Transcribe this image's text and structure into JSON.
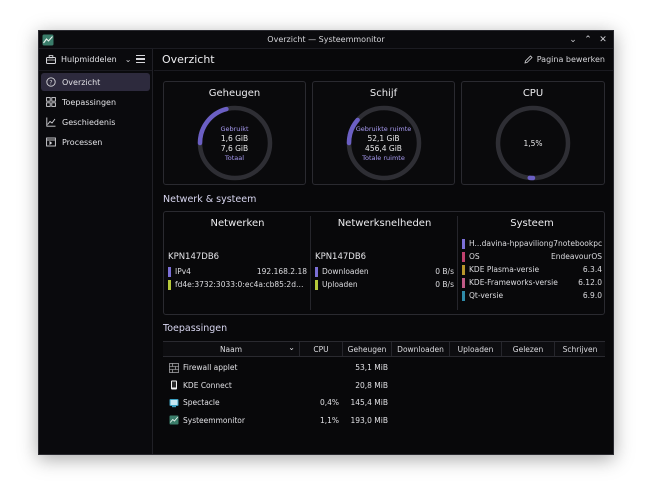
{
  "window": {
    "title": "Overzicht — Systeemmonitor",
    "controls": [
      "⌄",
      "⌃",
      "✕"
    ]
  },
  "sidebar": {
    "tools_label": "Hulpmiddelen",
    "items": [
      {
        "label": "Overzicht",
        "icon": "overview-icon",
        "active": true
      },
      {
        "label": "Toepassingen",
        "icon": "applications-icon",
        "active": false
      },
      {
        "label": "Geschiedenis",
        "icon": "history-icon",
        "active": false
      },
      {
        "label": "Processen",
        "icon": "processes-icon",
        "active": false
      }
    ]
  },
  "page": {
    "title": "Overzicht",
    "edit_label": "Pagina bewerken"
  },
  "cards": {
    "memory": {
      "title": "Geheugen",
      "used_label": "Gebruikt",
      "used": "1,6 GiB",
      "total": "7,6 GiB",
      "total_label": "Totaal",
      "fraction": 0.21
    },
    "disk": {
      "title": "Schijf",
      "used_label": "Gebruikte ruimte",
      "used": "52,1 GiB",
      "total": "456,4 GiB",
      "total_label": "Totale ruimte",
      "fraction": 0.114
    },
    "cpu": {
      "title": "CPU",
      "value": "1,5%",
      "fraction": 0.015
    }
  },
  "network_section": {
    "title": "Netwerk & systeem",
    "networks": {
      "title": "Netwerken",
      "host": "KPN147DB6",
      "ipv4_label": "IPv4",
      "ipv4_value": "192.168.2.18",
      "ipv6_value": "fd4e:3732:3033:0:ec4a:cb85:2d5f:6a..."
    },
    "speeds": {
      "title": "Netwerksnelheden",
      "host": "KPN147DB6",
      "down_label": "Downloaden",
      "down_value": "0 B/s",
      "up_label": "Uploaden",
      "up_value": "0 B/s"
    },
    "system": {
      "title": "Systeem",
      "rows": [
        {
          "key": "H...",
          "value": "davina-hppaviliong7notebookpc",
          "color": "#7b6fd6"
        },
        {
          "key": "OS",
          "value": "EndeavourOS",
          "color": "#c0416e"
        },
        {
          "key": "KDE Plasma-versie",
          "value": "6.3.4",
          "color": "#b8962b"
        },
        {
          "key": "KDE-Frameworks-versie",
          "value": "6.12.0",
          "color": "#c05a86"
        },
        {
          "key": "Qt-versie",
          "value": "6.9.0",
          "color": "#2f8aa8"
        }
      ]
    }
  },
  "apps_section": {
    "title": "Toepassingen",
    "columns": [
      "Naam",
      "CPU",
      "Geheugen",
      "Downloaden",
      "Uploaden",
      "Gelezen",
      "Schrijven"
    ],
    "rows": [
      {
        "name": "Firewall applet",
        "cpu": "",
        "memory": "53,1 MiB",
        "icon": "firewall-icon"
      },
      {
        "name": "KDE Connect",
        "cpu": "",
        "memory": "20,8 MiB",
        "icon": "kdeconnect-icon"
      },
      {
        "name": "Spectacle",
        "cpu": "0,4%",
        "memory": "145,4 MiB",
        "icon": "spectacle-icon"
      },
      {
        "name": "Systeemmonitor",
        "cpu": "1,1%",
        "memory": "193,0 MiB",
        "icon": "systemmonitor-icon"
      }
    ]
  },
  "colors": {
    "accent": "#7b6fd6",
    "ipv4_bar": "#7b6fd6",
    "ipv6_bar": "#b5c83a",
    "down_bar": "#7b6fd6",
    "up_bar": "#b5c83a"
  }
}
